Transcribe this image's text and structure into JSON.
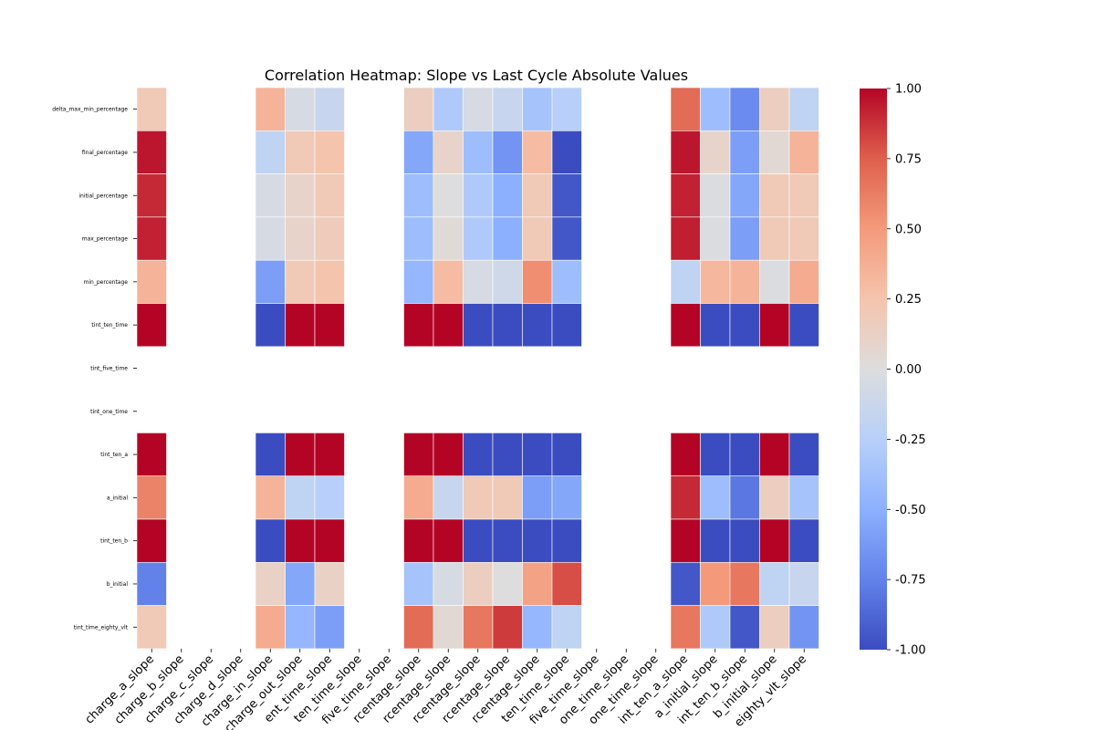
{
  "chart_data": {
    "type": "heatmap",
    "title": "Correlation Heatmap: Slope vs Last Cycle Absolute Values",
    "colormap": "coolwarm",
    "vmin": -1.0,
    "vmax": 1.0,
    "colorbar_ticks": [
      "1.00",
      "0.75",
      "0.50",
      "0.25",
      "0.00",
      "-0.25",
      "-0.50",
      "-0.75",
      "-1.00"
    ],
    "colorbar_tick_values": [
      1.0,
      0.75,
      0.5,
      0.25,
      0.0,
      -0.25,
      -0.5,
      -0.75,
      -1.0
    ],
    "rows": [
      "delta_max_min_percentage",
      "final_percentage",
      "initial_percentage",
      "max_percentage",
      "min_percentage",
      "tint_ten_time",
      "tint_five_time",
      "tint_one_time",
      "tint_ten_a",
      "a_initial",
      "tint_ten_b",
      "b_initial",
      "tint_time_eighty_vlt"
    ],
    "columns": [
      "charge_a_slope",
      "charge_b_slope",
      "charge_c_slope",
      "charge_d_slope",
      "charge_in_slope",
      "charge_out_slope",
      "ent_time_slope",
      "ten_time_slope",
      "five_time_slope",
      "rcentage_slope",
      "rcentage_slope",
      "rcentage_slope",
      "rcentage_slope",
      "rcentage_slope",
      "ten_time_slope",
      "five_time_slope",
      "one_time_slope",
      "one_time_slope",
      "int_ten_a_slope",
      "a_initial_slope",
      "int_ten_b_slope",
      "b_initial_slope",
      "eighty_vlt_slope"
    ],
    "values": [
      [
        0.2,
        null,
        null,
        null,
        0.35,
        -0.05,
        -0.15,
        null,
        null,
        0.15,
        -0.3,
        -0.05,
        -0.15,
        -0.35,
        -0.25,
        null,
        null,
        null,
        0.7,
        -0.4,
        -0.7,
        0.15,
        -0.2
      ],
      [
        0.95,
        null,
        null,
        null,
        -0.2,
        0.2,
        0.25,
        null,
        null,
        -0.55,
        0.1,
        -0.4,
        -0.65,
        0.3,
        -1.0,
        null,
        null,
        null,
        0.95,
        0.1,
        -0.6,
        0.05,
        0.35
      ],
      [
        0.9,
        null,
        null,
        null,
        -0.05,
        0.1,
        0.2,
        null,
        null,
        -0.4,
        0.0,
        -0.3,
        -0.5,
        0.2,
        -0.95,
        null,
        null,
        null,
        0.92,
        -0.02,
        -0.55,
        0.2,
        0.2
      ],
      [
        0.92,
        null,
        null,
        null,
        -0.05,
        0.1,
        0.18,
        null,
        null,
        -0.4,
        0.03,
        -0.3,
        -0.5,
        0.2,
        -0.95,
        null,
        null,
        null,
        0.93,
        -0.02,
        -0.6,
        0.2,
        0.2
      ],
      [
        0.35,
        null,
        null,
        null,
        -0.6,
        0.2,
        0.25,
        null,
        null,
        -0.45,
        0.3,
        -0.05,
        -0.1,
        0.55,
        -0.4,
        null,
        null,
        null,
        -0.2,
        0.33,
        0.35,
        -0.02,
        0.4
      ],
      [
        1.0,
        null,
        null,
        null,
        -1.0,
        1.0,
        1.0,
        null,
        null,
        1.0,
        1.0,
        -1.0,
        -1.0,
        -1.0,
        -1.0,
        null,
        null,
        null,
        1.0,
        -1.0,
        -1.0,
        1.0,
        -1.0
      ],
      [
        null,
        null,
        null,
        null,
        null,
        null,
        null,
        null,
        null,
        null,
        null,
        null,
        null,
        null,
        null,
        null,
        null,
        null,
        null,
        null,
        null,
        null,
        null
      ],
      [
        null,
        null,
        null,
        null,
        null,
        null,
        null,
        null,
        null,
        null,
        null,
        null,
        null,
        null,
        null,
        null,
        null,
        null,
        null,
        null,
        null,
        null,
        null
      ],
      [
        1.0,
        null,
        null,
        null,
        -1.0,
        1.0,
        1.0,
        null,
        null,
        1.0,
        1.0,
        -1.0,
        -1.0,
        -1.0,
        -1.0,
        null,
        null,
        null,
        1.0,
        -1.0,
        -1.0,
        1.0,
        -1.0
      ],
      [
        0.6,
        null,
        null,
        null,
        0.35,
        -0.2,
        -0.25,
        null,
        null,
        0.4,
        -0.15,
        0.2,
        0.2,
        -0.6,
        -0.55,
        null,
        null,
        null,
        0.9,
        -0.4,
        -0.8,
        0.15,
        -0.35
      ],
      [
        1.0,
        null,
        null,
        null,
        -1.0,
        1.0,
        1.0,
        null,
        null,
        1.0,
        1.0,
        -1.0,
        -1.0,
        -1.0,
        -1.0,
        null,
        null,
        null,
        1.0,
        -1.0,
        -1.0,
        1.0,
        -1.0
      ],
      [
        -0.75,
        null,
        null,
        null,
        0.12,
        -0.55,
        0.12,
        null,
        null,
        -0.35,
        -0.05,
        0.15,
        0.0,
        0.45,
        0.8,
        null,
        null,
        null,
        -0.95,
        0.5,
        0.65,
        -0.2,
        -0.15
      ],
      [
        0.2,
        null,
        null,
        null,
        0.4,
        -0.45,
        -0.6,
        null,
        null,
        0.7,
        0.05,
        0.65,
        0.85,
        -0.45,
        -0.2,
        null,
        null,
        null,
        0.65,
        -0.3,
        -0.95,
        0.15,
        -0.65
      ]
    ]
  }
}
